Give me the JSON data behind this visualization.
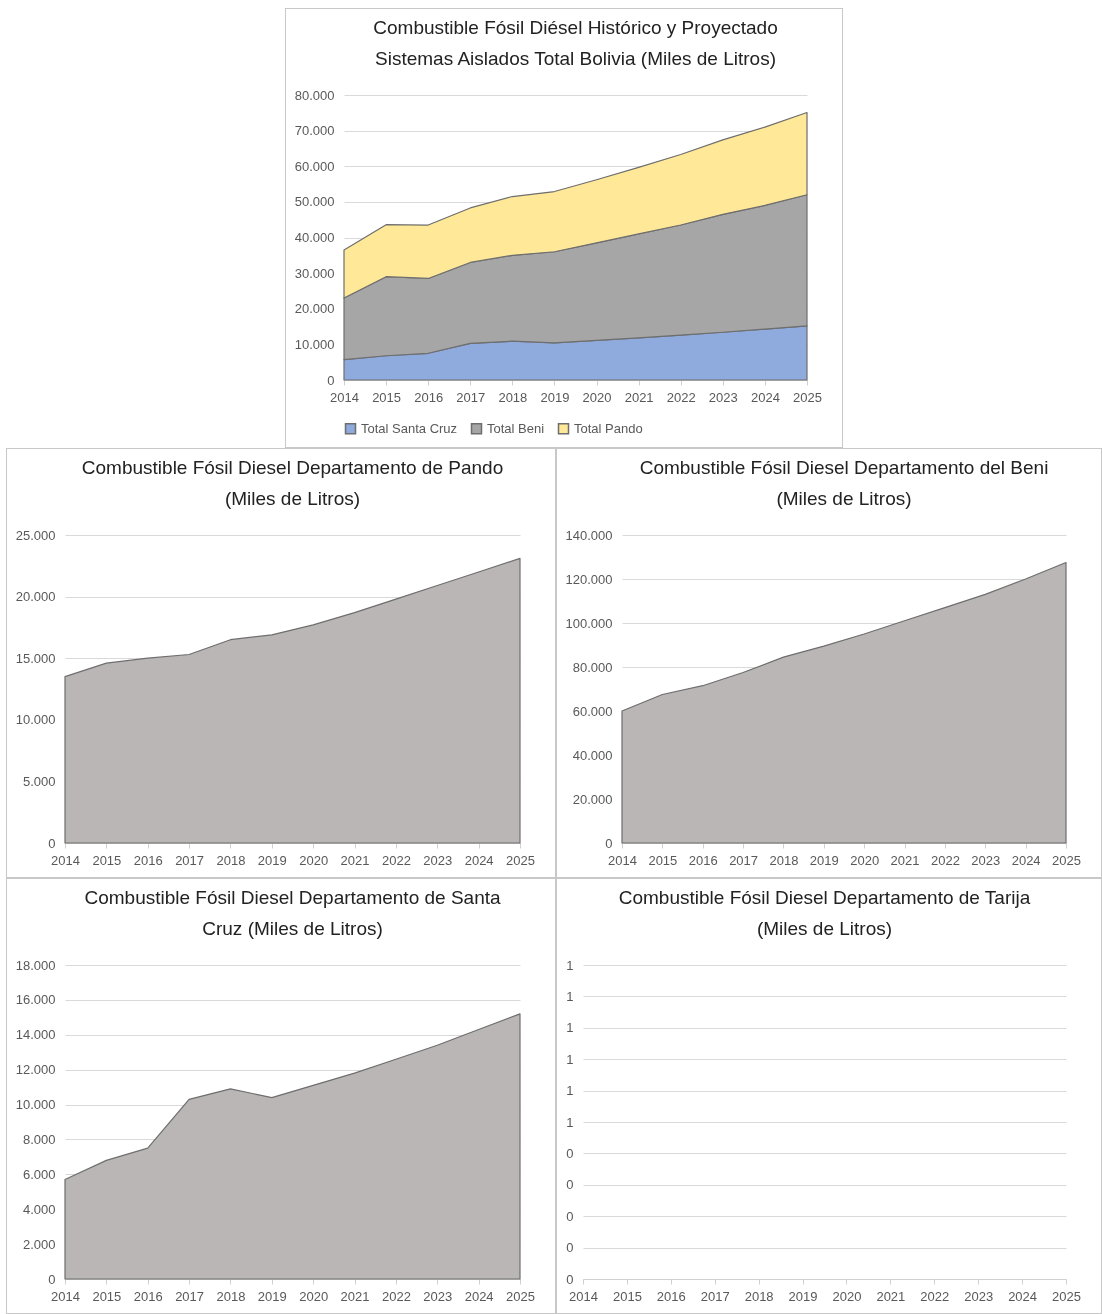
{
  "chart_data": [
    {
      "type": "area",
      "title": "Combustible Fósil Diésel Histórico y Proyectado\nSistemas Aislados Total Bolivia (Miles de Litros)",
      "categories": [
        "2014",
        "2015",
        "2016",
        "2017",
        "2018",
        "2019",
        "2020",
        "2021",
        "2022",
        "2023",
        "2024",
        "2025"
      ],
      "stacked": true,
      "legend": "bottom",
      "grid": "y",
      "series": [
        {
          "name": "Total Santa Cruz",
          "color": "#8faadc",
          "values": [
            5700,
            6800,
            7500,
            10300,
            10900,
            10400,
            11100,
            11800,
            12600,
            13400,
            14300,
            15200
          ]
        },
        {
          "name": "Total Beni",
          "color": "#a6a6a6",
          "values": [
            17300,
            22200,
            21000,
            22700,
            24100,
            25600,
            27400,
            29200,
            30900,
            33100,
            34700,
            36800
          ]
        },
        {
          "name": "Total Pando",
          "color": "#ffe998",
          "values": [
            13500,
            14600,
            15000,
            15300,
            16500,
            16900,
            17700,
            18700,
            19800,
            20900,
            22000,
            23100
          ]
        }
      ],
      "ylim": [
        0,
        80000
      ],
      "yticks": [
        {
          "value": 0,
          "label": "0"
        },
        {
          "value": 10000,
          "label": "10.000"
        },
        {
          "value": 20000,
          "label": "20.000"
        },
        {
          "value": 30000,
          "label": "30.000"
        },
        {
          "value": 40000,
          "label": "40.000"
        },
        {
          "value": 50000,
          "label": "50.000"
        },
        {
          "value": 60000,
          "label": "60.000"
        },
        {
          "value": 70000,
          "label": "70.000"
        },
        {
          "value": 80000,
          "label": "80.000"
        }
      ]
    },
    {
      "type": "area",
      "title": "Combustible Fósil Diesel Departamento de Pando\n(Miles de Litros)",
      "categories": [
        "2014",
        "2015",
        "2016",
        "2017",
        "2018",
        "2019",
        "2020",
        "2021",
        "2022",
        "2023",
        "2024",
        "2025"
      ],
      "grid": "y",
      "series": [
        {
          "color": "#bab6b5",
          "values": [
            13500,
            14600,
            15000,
            15300,
            16500,
            16900,
            17700,
            18700,
            19800,
            20900,
            22000,
            23100
          ]
        }
      ],
      "ylim": [
        0,
        25000
      ],
      "yticks": [
        {
          "value": 0,
          "label": "0"
        },
        {
          "value": 5000,
          "label": "5.000"
        },
        {
          "value": 10000,
          "label": "10.000"
        },
        {
          "value": 15000,
          "label": "15.000"
        },
        {
          "value": 20000,
          "label": "20.000"
        },
        {
          "value": 25000,
          "label": "25.000"
        }
      ]
    },
    {
      "type": "area",
      "title": "Combustible Fósil Diesel Departamento del Beni\n(Miles de Litros)",
      "categories": [
        "2014",
        "2015",
        "2016",
        "2017",
        "2018",
        "2019",
        "2020",
        "2021",
        "2022",
        "2023",
        "2024",
        "2025"
      ],
      "grid": "y",
      "series": [
        {
          "color": "#bab6b5",
          "values": [
            60000,
            67500,
            71500,
            77500,
            84500,
            89500,
            95000,
            101000,
            107000,
            113000,
            120000,
            127500
          ]
        }
      ],
      "ylim": [
        0,
        140000
      ],
      "yticks": [
        {
          "value": 0,
          "label": "0"
        },
        {
          "value": 20000,
          "label": "20.000"
        },
        {
          "value": 40000,
          "label": "40.000"
        },
        {
          "value": 60000,
          "label": "60.000"
        },
        {
          "value": 80000,
          "label": "80.000"
        },
        {
          "value": 100000,
          "label": "100.000"
        },
        {
          "value": 120000,
          "label": "120.000"
        },
        {
          "value": 140000,
          "label": "140.000"
        }
      ]
    },
    {
      "type": "area",
      "title": "Combustible Fósil Diesel  Departamento de Santa\nCruz (Miles de Litros)",
      "categories": [
        "2014",
        "2015",
        "2016",
        "2017",
        "2018",
        "2019",
        "2020",
        "2021",
        "2022",
        "2023",
        "2024",
        "2025"
      ],
      "grid": "y",
      "series": [
        {
          "color": "#bab6b5",
          "values": [
            5700,
            6800,
            7500,
            10300,
            10900,
            10400,
            11100,
            11800,
            12600,
            13400,
            14300,
            15200
          ]
        }
      ],
      "ylim": [
        0,
        18000
      ],
      "yticks": [
        {
          "value": 0,
          "label": "0"
        },
        {
          "value": 2000,
          "label": "2.000"
        },
        {
          "value": 4000,
          "label": "4.000"
        },
        {
          "value": 6000,
          "label": "6.000"
        },
        {
          "value": 8000,
          "label": "8.000"
        },
        {
          "value": 10000,
          "label": "10.000"
        },
        {
          "value": 12000,
          "label": "12.000"
        },
        {
          "value": 14000,
          "label": "14.000"
        },
        {
          "value": 16000,
          "label": "16.000"
        },
        {
          "value": 18000,
          "label": "18.000"
        }
      ]
    },
    {
      "type": "area",
      "title": "Combustible Fósil Diesel Departamento de Tarija\n(Miles de Litros)",
      "categories": [
        "2014",
        "2015",
        "2016",
        "2017",
        "2018",
        "2019",
        "2020",
        "2021",
        "2022",
        "2023",
        "2024",
        "2025"
      ],
      "grid": "y",
      "series": [
        {
          "color": "#bab6b5",
          "values": [
            null,
            null,
            null,
            null,
            null,
            null,
            null,
            null,
            null,
            null,
            null,
            null
          ]
        }
      ],
      "ylim": [
        0,
        1
      ],
      "yticks": [
        {
          "value": 0,
          "label": "0"
        },
        {
          "value": 0.1,
          "label": "0"
        },
        {
          "value": 0.2,
          "label": "0"
        },
        {
          "value": 0.3,
          "label": "0"
        },
        {
          "value": 0.4,
          "label": "0"
        },
        {
          "value": 0.5,
          "label": "1"
        },
        {
          "value": 0.6,
          "label": "1"
        },
        {
          "value": 0.7,
          "label": "1"
        },
        {
          "value": 0.8,
          "label": "1"
        },
        {
          "value": 0.9,
          "label": "1"
        },
        {
          "value": 1,
          "label": "1"
        }
      ]
    }
  ]
}
